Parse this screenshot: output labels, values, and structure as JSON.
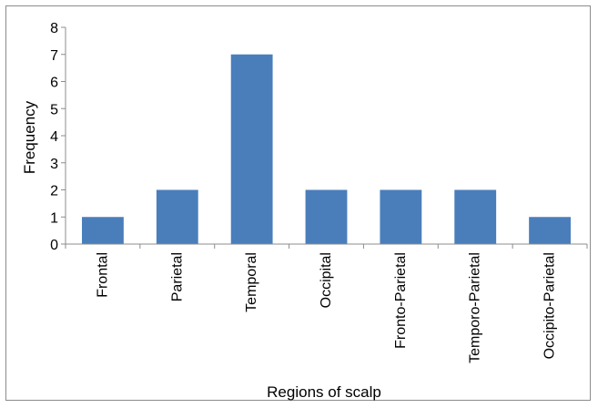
{
  "chart_data": {
    "type": "bar",
    "categories": [
      "Frontal",
      "Parietal",
      "Temporal",
      "Occipital",
      "Fronto-Parietal",
      "Temporo-Parietal",
      "Occipito-Parietal"
    ],
    "values": [
      1,
      2,
      7,
      2,
      2,
      2,
      1
    ],
    "title": "",
    "xlabel": "Regions of scalp",
    "ylabel": "Frequency",
    "ylim": [
      0,
      8
    ],
    "yticks": [
      0,
      1,
      2,
      3,
      4,
      5,
      6,
      7,
      8
    ],
    "grid": false,
    "legend": "none",
    "bar_color": "#4a7ebb"
  }
}
